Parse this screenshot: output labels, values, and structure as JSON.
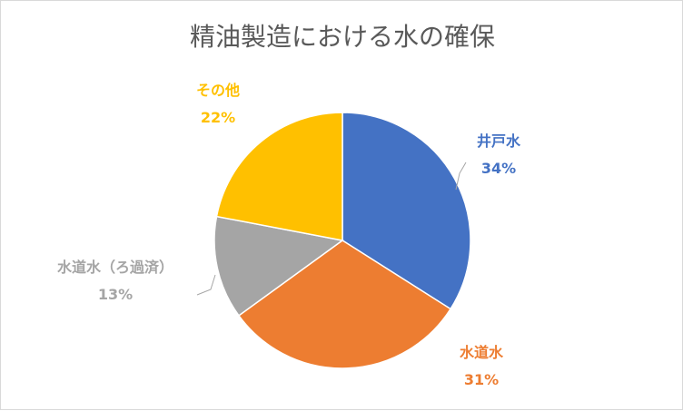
{
  "chart_data": {
    "type": "pie",
    "title": "精油製造における水の確保",
    "slices": [
      {
        "label": "井戸水",
        "value": 34,
        "value_label": "34%",
        "color": "#4472C4"
      },
      {
        "label": "水道水",
        "value": 31,
        "value_label": "31%",
        "color": "#ED7D31"
      },
      {
        "label": "水道水（ろ過済）",
        "value": 13,
        "value_label": "13%",
        "color": "#A5A5A5"
      },
      {
        "label": "その他",
        "value": 22,
        "value_label": "22%",
        "color": "#FFC000"
      }
    ],
    "start_angle_deg": 0,
    "direction": "clockwise",
    "data_labels": "outside with leader lines",
    "legend": "none"
  }
}
